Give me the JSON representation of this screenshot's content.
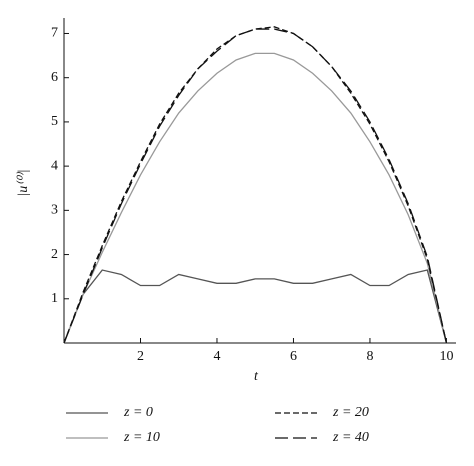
{
  "chart_data": {
    "type": "line",
    "x_label": "t",
    "y_label": "|u⁽⁰⁾|",
    "x": [
      0,
      0.5,
      1,
      1.5,
      2,
      2.5,
      3,
      3.5,
      4,
      4.5,
      5,
      5.5,
      6,
      6.5,
      7,
      7.5,
      8,
      8.5,
      9,
      9.5,
      10
    ],
    "series": [
      {
        "name": "z = 0",
        "color": "#555555",
        "values": [
          0,
          1.1,
          1.65,
          1.55,
          1.3,
          1.3,
          1.55,
          1.45,
          1.35,
          1.35,
          1.45,
          1.45,
          1.35,
          1.35,
          1.45,
          1.55,
          1.3,
          1.3,
          1.55,
          1.65,
          0
        ]
      },
      {
        "name": "z = 10",
        "color": "#999999",
        "values": [
          0,
          1.1,
          2.05,
          2.95,
          3.8,
          4.55,
          5.2,
          5.7,
          6.1,
          6.4,
          6.55,
          6.55,
          6.4,
          6.1,
          5.7,
          5.2,
          4.55,
          3.8,
          2.9,
          1.8,
          0
        ]
      },
      {
        "name": "z = 20",
        "color": "#111111",
        "values": [
          0,
          1.15,
          2.2,
          3.2,
          4.1,
          4.95,
          5.65,
          6.2,
          6.65,
          6.95,
          7.1,
          7.15,
          7.0,
          6.7,
          6.25,
          5.65,
          4.95,
          4.1,
          3.1,
          1.9,
          0
        ]
      },
      {
        "name": "z = 40",
        "color": "#111111",
        "values": [
          0,
          1.1,
          2.15,
          3.15,
          4.05,
          4.9,
          5.6,
          6.2,
          6.6,
          6.95,
          7.1,
          7.1,
          7.0,
          6.7,
          6.25,
          5.7,
          5.0,
          4.15,
          3.15,
          1.95,
          0
        ]
      }
    ],
    "xlim": [
      0,
      10.25
    ],
    "ylim": [
      0,
      7.35
    ],
    "xticks": [
      2,
      4,
      6,
      8,
      10
    ],
    "yticks": [
      1,
      2,
      3,
      4,
      5,
      6,
      7
    ]
  }
}
